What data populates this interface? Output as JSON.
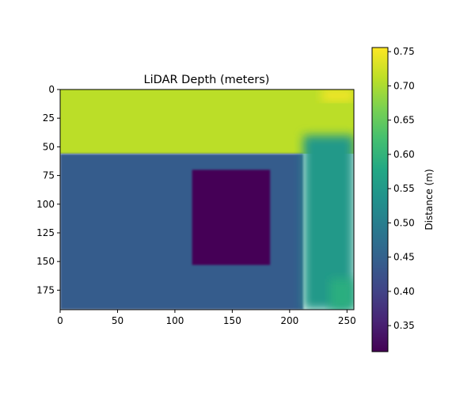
{
  "chart_data": [
    {
      "type": "heatmap",
      "title": "LiDAR Depth (meters)",
      "xlabel": "",
      "ylabel": "",
      "xlim": [
        0,
        256
      ],
      "ylim": [
        192,
        0
      ],
      "x_ticks": [
        0,
        50,
        100,
        150,
        200,
        250
      ],
      "y_ticks": [
        0,
        25,
        50,
        75,
        100,
        125,
        150,
        175
      ],
      "colormap": "viridis",
      "grid": false,
      "regions": [
        {
          "name": "upper background",
          "x": [
            0,
            256
          ],
          "y": [
            0,
            56
          ],
          "value": 0.71
        },
        {
          "name": "upper-right corner",
          "x": [
            228,
            256
          ],
          "y": [
            0,
            10
          ],
          "value": 0.75
        },
        {
          "name": "box surface",
          "x": [
            0,
            212
          ],
          "y": [
            56,
            192
          ],
          "value": 0.44
        },
        {
          "name": "inner rectangle",
          "x": [
            115,
            183
          ],
          "y": [
            70,
            153
          ],
          "value": 0.315
        },
        {
          "name": "right strip",
          "x": [
            212,
            256
          ],
          "y": [
            40,
            192
          ],
          "value": 0.55
        },
        {
          "name": "lower-right patch",
          "x": [
            235,
            256
          ],
          "y": [
            165,
            192
          ],
          "value": 0.59
        }
      ]
    },
    {
      "type": "colorbar",
      "label": "Distance (m)",
      "range": [
        0.312,
        0.756
      ],
      "ticks": [
        "0.35",
        "0.40",
        "0.45",
        "0.50",
        "0.55",
        "0.60",
        "0.65",
        "0.70",
        "0.75"
      ],
      "colors": {
        "0.0": "#440154",
        "0.1": "#482475",
        "0.2": "#414487",
        "0.3": "#355f8d",
        "0.4": "#2a788e",
        "0.5": "#21918c",
        "0.6": "#22a884",
        "0.7": "#44bf70",
        "0.8": "#7ad151",
        "0.9": "#bddf26",
        "1.0": "#fde725"
      }
    }
  ]
}
